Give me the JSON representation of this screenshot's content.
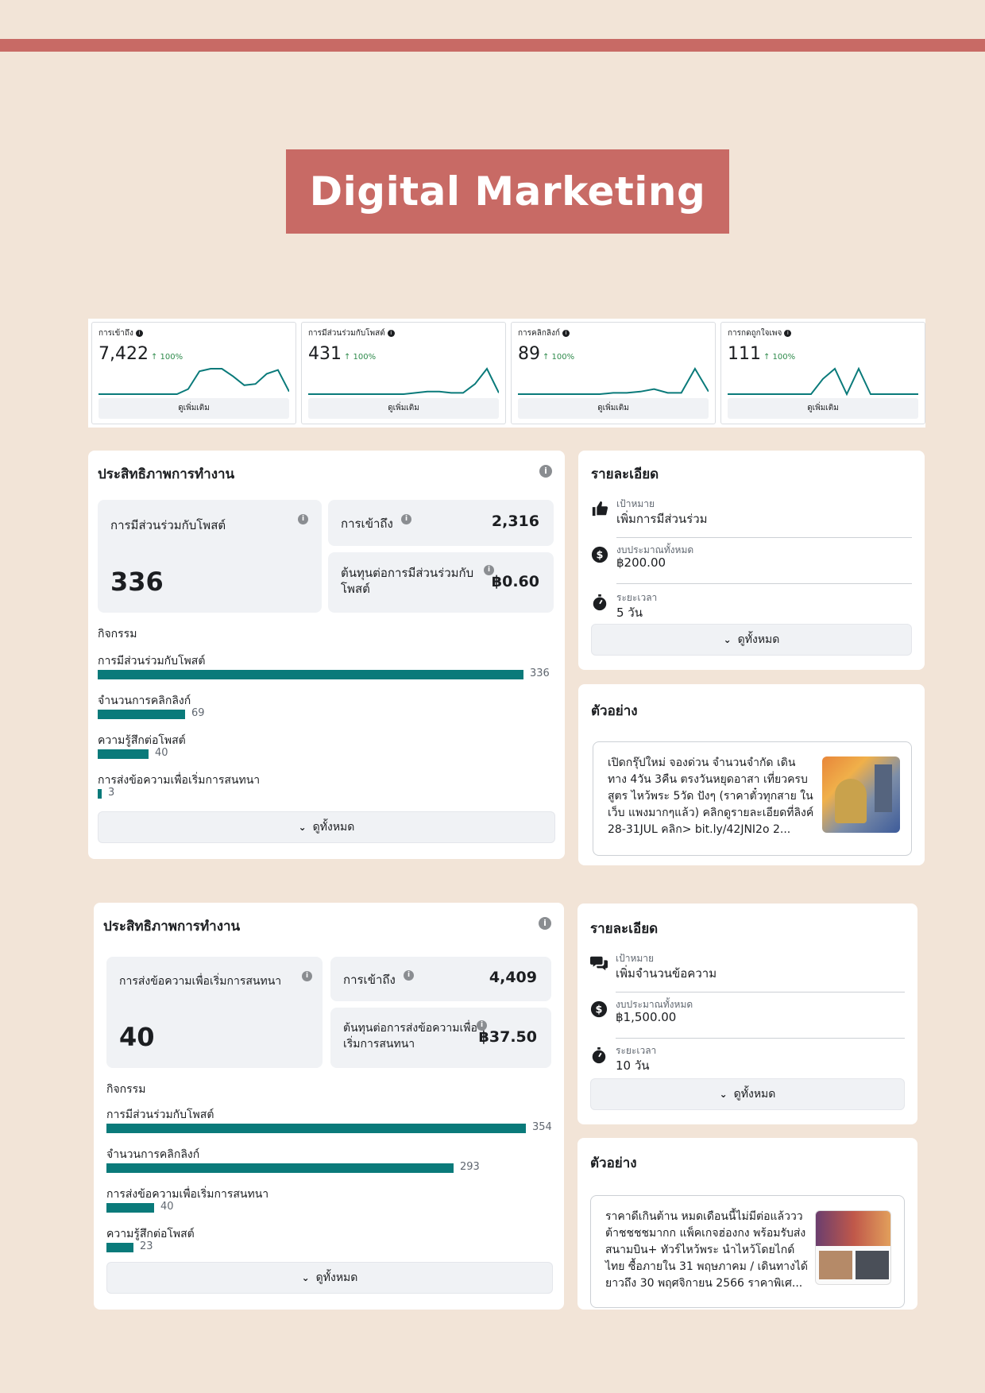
{
  "title": "Digital Marketing",
  "colors": {
    "accent": "#c86a65",
    "bar": "#0a7a7a",
    "background": "#f2e4d7",
    "trend_up": "#2e8a4b"
  },
  "metrics": [
    {
      "label": "การเข้าถึง",
      "value": "7,422",
      "trend": "↑ 100%",
      "button": "ดูเพิ่มเติม",
      "spark": [
        0,
        0,
        0,
        0,
        0,
        0,
        0,
        0,
        0.2,
        0.9,
        1,
        1,
        0.7,
        0.35,
        0.4,
        0.8,
        0.95,
        0.1
      ]
    },
    {
      "label": "การมีส่วนร่วมกับโพสต์",
      "value": "431",
      "trend": "↑ 100%",
      "button": "ดูเพิ่มเติม",
      "spark": [
        0,
        0,
        0,
        0,
        0,
        0,
        0,
        0,
        0,
        0.05,
        0.1,
        0.1,
        0.05,
        0.05,
        0.4,
        1,
        0.05
      ]
    },
    {
      "label": "การคลิกลิงก์",
      "value": "89",
      "trend": "↑ 100%",
      "button": "ดูเพิ่มเติม",
      "spark": [
        0,
        0,
        0,
        0,
        0,
        0,
        0,
        0.05,
        0.05,
        0.1,
        0.2,
        0.05,
        0.05,
        1,
        0.1
      ]
    },
    {
      "label": "การกดถูกใจเพจ",
      "value": "111",
      "trend": "↑ 100%",
      "button": "ดูเพิ่มเติม",
      "spark": [
        0,
        0,
        0,
        0,
        0,
        0,
        0,
        0,
        0.6,
        1,
        0,
        1,
        0,
        0,
        0,
        0,
        0
      ]
    }
  ],
  "campaigns": [
    {
      "performance": {
        "heading": "ประสิทธิภาพการทำงาน",
        "main_label": "การมีส่วนร่วมกับโพสต์",
        "main_value": "336",
        "reach_label": "การเข้าถึง",
        "reach_value": "2,316",
        "cost_label": "ต้นทุนต่อการมีส่วนร่วมกับโพสต์",
        "cost_value": "฿0.60",
        "activity_title": "กิจกรรม",
        "activities": [
          {
            "label": "การมีส่วนร่วมกับโพสต์",
            "value": "336",
            "count": 336
          },
          {
            "label": "จำนวนการคลิกลิงก์",
            "value": "69",
            "count": 69
          },
          {
            "label": "ความรู้สึกต่อโพสต์",
            "value": "40",
            "count": 40
          },
          {
            "label": "การส่งข้อความเพื่อเริ่มการสนทนา",
            "value": "3",
            "count": 3
          }
        ],
        "activity_max": 336,
        "see_all": "ดูทั้งหมด"
      },
      "details": {
        "heading": "รายละเอียด",
        "goal_label": "เป้าหมาย",
        "goal_value": "เพิ่มการมีส่วนร่วม",
        "goal_icon": "thumbs-up-icon",
        "budget_label": "งบประมาณทั้งหมด",
        "budget_value": "฿200.00",
        "budget_icon": "dollar-icon",
        "duration_label": "ระยะเวลา",
        "duration_value": "5 วัน",
        "duration_icon": "stopwatch-icon",
        "see_all": "ดูทั้งหมด"
      },
      "preview": {
        "heading": "ตัวอย่าง",
        "text": "เปิดกรุ๊ปใหม่ จองด่วน จำนวนจำกัด เดินทาง 4วัน 3คืน ตรงวันหยุดอาสา เที่ยวครบสูตร ไหว้พระ 5วัด ปังๆ (ราคาตั๋วทุกสาย ในเว็บ แพงมากๆแล้ว) คลิกดูรายละเอียดที่ลิงค์ 28-31JUL คลิก> bit.ly/42JNI2o 2..."
      }
    },
    {
      "performance": {
        "heading": "ประสิทธิภาพการทำงาน",
        "main_label": "การส่งข้อความเพื่อเริ่มการสนทนา",
        "main_value": "40",
        "reach_label": "การเข้าถึง",
        "reach_value": "4,409",
        "cost_label": "ต้นทุนต่อการส่งข้อความเพื่อเริ่มการสนทนา",
        "cost_value": "฿37.50",
        "activity_title": "กิจกรรม",
        "activities": [
          {
            "label": "การมีส่วนร่วมกับโพสต์",
            "value": "354",
            "count": 354
          },
          {
            "label": "จำนวนการคลิกลิงก์",
            "value": "293",
            "count": 293
          },
          {
            "label": "การส่งข้อความเพื่อเริ่มการสนทนา",
            "value": "40",
            "count": 40
          },
          {
            "label": "ความรู้สึกต่อโพสต์",
            "value": "23",
            "count": 23
          }
        ],
        "activity_max": 354,
        "see_all": "ดูทั้งหมด"
      },
      "details": {
        "heading": "รายละเอียด",
        "goal_label": "เป้าหมาย",
        "goal_value": "เพิ่มจำนวนข้อความ",
        "goal_icon": "chat-bubbles-icon",
        "budget_label": "งบประมาณทั้งหมด",
        "budget_value": "฿1,500.00",
        "budget_icon": "dollar-icon",
        "duration_label": "ระยะเวลา",
        "duration_value": "10 วัน",
        "duration_icon": "stopwatch-icon",
        "see_all": "ดูทั้งหมด"
      },
      "preview": {
        "heading": "ตัวอย่าง",
        "text": "ราคาดีเกินต้าน หมดเดือนนี้ไม่มีต่อแล้ววว ต้าชชชชมากก แพ็คเกจฮ่องกง พร้อมรับส่งสนามบิน+ ทัวร์ไหว้พระ นำไหว้โดยไกด์ไทย ซื้อภายใน 31 พฤษภาคม / เดินทางได้ยาวถึง 30 พฤศจิกายน 2566 ราคาพิเศ..."
      }
    }
  ]
}
